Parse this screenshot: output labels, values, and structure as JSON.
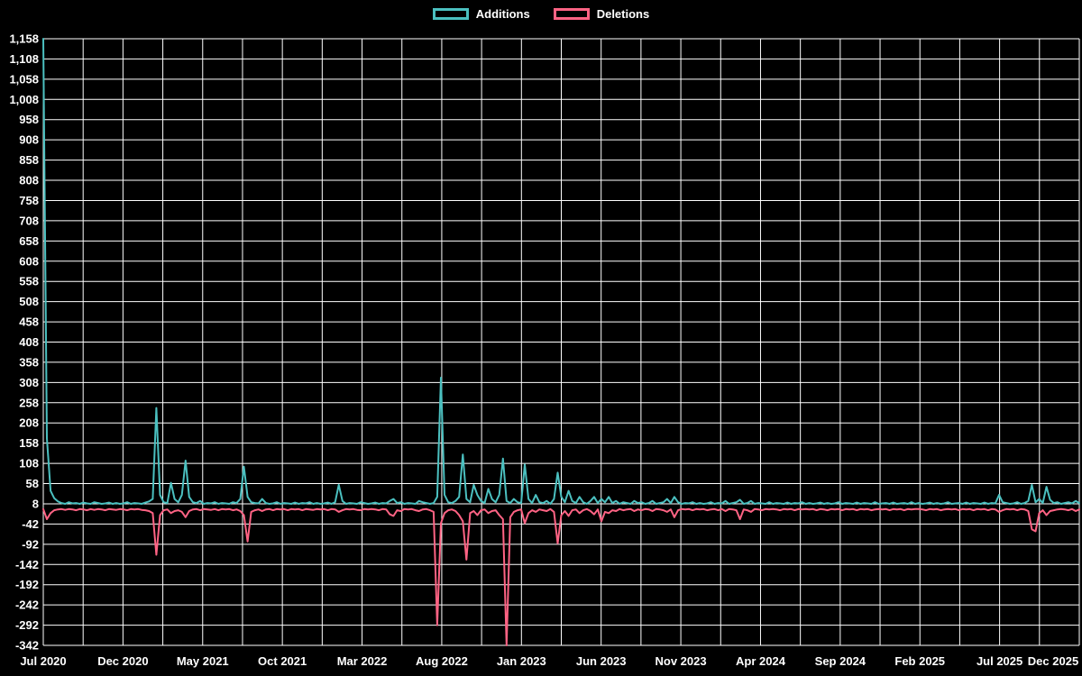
{
  "page": {
    "background": "#000000",
    "text_color": "#ffffff",
    "grid_color": "#ffffff"
  },
  "chart_data": {
    "type": "line",
    "title": "",
    "legend_position": "top",
    "grid": true,
    "background": "#000000",
    "x_labels": [
      "Jul 2020",
      "Dec 2020",
      "May 2021",
      "Oct 2021",
      "Mar 2022",
      "Aug 2022",
      "Jan 2023",
      "Jun 2023",
      "Nov 2023",
      "Apr 2024",
      "Sep 2024",
      "Feb 2025",
      "Jul 2025",
      "Dec 2025"
    ],
    "x_gridline_count": 27,
    "y_min": -342,
    "y_max": 1158,
    "y_step": 50,
    "y_ticks": [
      1158,
      1108,
      1058,
      1008,
      958,
      908,
      858,
      808,
      758,
      708,
      658,
      608,
      558,
      508,
      458,
      408,
      358,
      308,
      258,
      208,
      158,
      108,
      58,
      8,
      -42,
      -92,
      -142,
      -192,
      -242,
      -292,
      -342
    ],
    "series": [
      {
        "name": "Additions",
        "color": "#4bc0c0",
        "values": [
          1158,
          170,
          40,
          22,
          14,
          10,
          8,
          12,
          9,
          10,
          8,
          11,
          9,
          8,
          12,
          10,
          8,
          9,
          11,
          8,
          10,
          8,
          9,
          12,
          8,
          10,
          9,
          8,
          11,
          14,
          20,
          245,
          30,
          12,
          10,
          60,
          20,
          12,
          30,
          115,
          25,
          12,
          10,
          15,
          8,
          10,
          9,
          12,
          8,
          10,
          9,
          8,
          12,
          10,
          20,
          100,
          25,
          12,
          10,
          9,
          20,
          10,
          8,
          9,
          12,
          8,
          10,
          9,
          8,
          11,
          8,
          10,
          9,
          12,
          8,
          10,
          8,
          9,
          11,
          8,
          12,
          55,
          15,
          8,
          10,
          9,
          8,
          12,
          10,
          8,
          9,
          11,
          8,
          10,
          9,
          15,
          20,
          10,
          12,
          8,
          10,
          9,
          8,
          15,
          12,
          10,
          8,
          10,
          25,
          320,
          30,
          12,
          10,
          15,
          25,
          130,
          20,
          12,
          55,
          30,
          15,
          10,
          45,
          20,
          12,
          30,
          120,
          15,
          10,
          20,
          12,
          10,
          105,
          20,
          10,
          30,
          12,
          10,
          15,
          8,
          20,
          85,
          25,
          12,
          40,
          15,
          10,
          25,
          12,
          8,
          15,
          25,
          10,
          20,
          12,
          25,
          10,
          15,
          8,
          12,
          10,
          8,
          15,
          10,
          12,
          8,
          10,
          15,
          8,
          10,
          12,
          20,
          10,
          25,
          12,
          8,
          10,
          9,
          12,
          8,
          10,
          8,
          9,
          12,
          8,
          10,
          9,
          15,
          8,
          10,
          12,
          18,
          8,
          10,
          15,
          8,
          10,
          9,
          8,
          12,
          8,
          10,
          9,
          8,
          11,
          8,
          10,
          9,
          12,
          8,
          10,
          8,
          9,
          11,
          8,
          10,
          8,
          9,
          12,
          8,
          10,
          9,
          8,
          11,
          8,
          10,
          9,
          8,
          12,
          8,
          9,
          10,
          8,
          11,
          8,
          9,
          10,
          8,
          12,
          8,
          10,
          8,
          9,
          11,
          8,
          10,
          8,
          9,
          12,
          8,
          9,
          10,
          8,
          11,
          8,
          10,
          9,
          8,
          11,
          8,
          10,
          9,
          30,
          12,
          10,
          8,
          9,
          12,
          8,
          10,
          15,
          55,
          12,
          20,
          10,
          50,
          18,
          10,
          12,
          8,
          10,
          12,
          9,
          15,
          10
        ]
      },
      {
        "name": "Deletions",
        "color": "#ff6384",
        "values": [
          -5,
          -30,
          -15,
          -8,
          -6,
          -5,
          -7,
          -5,
          -6,
          -8,
          -5,
          -6,
          -8,
          -5,
          -7,
          -5,
          -6,
          -8,
          -5,
          -6,
          -7,
          -5,
          -6,
          -8,
          -5,
          -6,
          -5,
          -7,
          -8,
          -10,
          -15,
          -118,
          -20,
          -8,
          -6,
          -15,
          -10,
          -8,
          -12,
          -25,
          -10,
          -6,
          -5,
          -8,
          -5,
          -6,
          -7,
          -5,
          -8,
          -5,
          -6,
          -5,
          -8,
          -6,
          -10,
          -20,
          -85,
          -12,
          -8,
          -6,
          -10,
          -6,
          -5,
          -8,
          -5,
          -6,
          -5,
          -8,
          -5,
          -6,
          -5,
          -8,
          -5,
          -6,
          -7,
          -5,
          -6,
          -5,
          -8,
          -5,
          -6,
          -12,
          -8,
          -5,
          -6,
          -5,
          -7,
          -8,
          -5,
          -6,
          -5,
          -6,
          -8,
          -5,
          -6,
          -18,
          -22,
          -8,
          -10,
          -5,
          -6,
          -5,
          -8,
          -10,
          -6,
          -5,
          -8,
          -12,
          -292,
          -40,
          -15,
          -8,
          -6,
          -10,
          -20,
          -35,
          -130,
          -15,
          -10,
          -20,
          -8,
          -6,
          -15,
          -10,
          -8,
          -20,
          -30,
          -342,
          -25,
          -12,
          -8,
          -6,
          -40,
          -15,
          -8,
          -12,
          -6,
          -8,
          -10,
          -5,
          -12,
          -90,
          -20,
          -10,
          -22,
          -8,
          -6,
          -15,
          -8,
          -5,
          -10,
          -18,
          -6,
          -35,
          -12,
          -15,
          -8,
          -10,
          -5,
          -8,
          -6,
          -5,
          -10,
          -6,
          -8,
          -5,
          -6,
          -10,
          -5,
          -6,
          -8,
          -12,
          -6,
          -25,
          -8,
          -5,
          -6,
          -5,
          -8,
          -5,
          -6,
          -5,
          -8,
          -6,
          -5,
          -8,
          -5,
          -10,
          -5,
          -6,
          -8,
          -30,
          -6,
          -8,
          -12,
          -5,
          -6,
          -8,
          -5,
          -6,
          -5,
          -6,
          -8,
          -5,
          -6,
          -5,
          -8,
          -5,
          -6,
          -5,
          -6,
          -5,
          -8,
          -5,
          -6,
          -8,
          -5,
          -6,
          -5,
          -8,
          -5,
          -6,
          -5,
          -8,
          -5,
          -6,
          -5,
          -8,
          -6,
          -5,
          -6,
          -5,
          -8,
          -5,
          -6,
          -5,
          -8,
          -5,
          -6,
          -5,
          -5,
          -6,
          -8,
          -5,
          -6,
          -5,
          -8,
          -6,
          -5,
          -6,
          -5,
          -8,
          -5,
          -6,
          -5,
          -8,
          -5,
          -6,
          -5,
          -8,
          -5,
          -6,
          -12,
          -8,
          -5,
          -6,
          -5,
          -8,
          -5,
          -6,
          -10,
          -55,
          -60,
          -15,
          -8,
          -20,
          -10,
          -8,
          -6,
          -5,
          -6,
          -8,
          -5,
          -10,
          -6
        ]
      }
    ]
  }
}
